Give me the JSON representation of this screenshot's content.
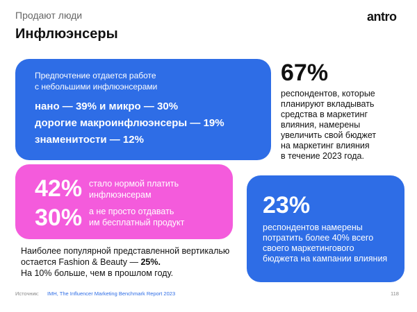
{
  "header": {
    "subtitle": "Продают люди",
    "title": "Инфлюэнсеры",
    "logo": "antro"
  },
  "preference_card": {
    "intro": [
      "Предпочтение отдается работе",
      "с небольшими инфлюэнсерами"
    ],
    "items": [
      "нано — 39% и микро — 30%",
      "дорогие макроинфлюэнсеры — 19%",
      "знаменитости — 12%"
    ]
  },
  "stat_67": {
    "value": "67%",
    "text": [
      "респондентов, которые",
      "планируют вкладывать",
      "средства в маркетинг",
      "влияния, намерены",
      "увеличить свой бюджет",
      "на маркетинг влияния",
      "в течение 2023 года."
    ]
  },
  "payment_card": {
    "rows": [
      {
        "value": "42%",
        "text": [
          "стало нормой платить",
          "инфлюэнсерам"
        ]
      },
      {
        "value": "30%",
        "text": [
          "а не просто отдавать",
          "им бесплатный продукт"
        ]
      }
    ]
  },
  "vertical_note": {
    "line1": "Наиболее популярной представленной вертикалью",
    "line2": "остается Fashion & Beauty —",
    "line2_bold": "25%.",
    "line3": "На 10% больше, чем в прошлом году."
  },
  "stat_23": {
    "value": "23%",
    "text": [
      "респондентов намерены",
      "потратить более 40% всего",
      "своего маркетингового",
      "бюджета на кампании влияния"
    ]
  },
  "footer": {
    "source_label": "Источник:",
    "source": "IMH, The Influencer Marketing Benchmark Report 2023",
    "page": "118"
  }
}
